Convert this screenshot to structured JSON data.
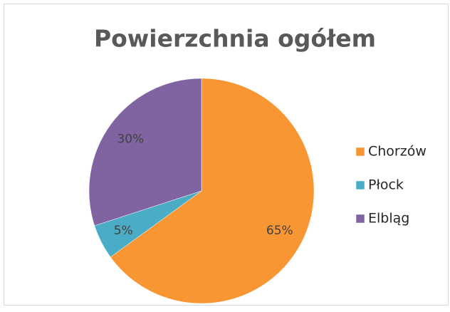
{
  "chart_data": {
    "type": "pie",
    "title": "Powierzchnia ogółem",
    "categories": [
      "Chorzów",
      "Płock",
      "Elbląg"
    ],
    "values": [
      65,
      5,
      30
    ],
    "value_labels": [
      "65%",
      "5%",
      "30%"
    ],
    "colors": [
      "#f79633",
      "#4bacc6",
      "#8064a2"
    ],
    "legend": "right"
  }
}
